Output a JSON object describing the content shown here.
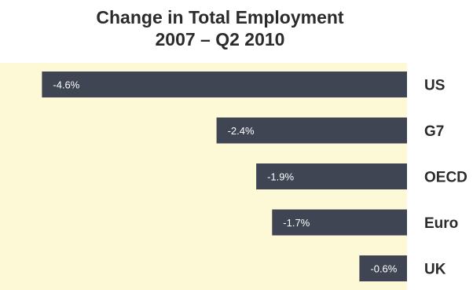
{
  "chart_data": {
    "type": "bar",
    "orientation": "horizontal",
    "title": [
      "Change in Total Employment",
      "2007 – Q2 2010"
    ],
    "categories": [
      "US",
      "G7",
      "OECD",
      "Euro",
      "UK"
    ],
    "values": [
      -4.6,
      -2.4,
      -1.9,
      -1.7,
      -0.6
    ],
    "value_labels": [
      "-4.6%",
      "-2.4%",
      "-1.9%",
      "-1.7%",
      "-0.6%"
    ],
    "xlim": [
      -5.0,
      0
    ],
    "grid": false,
    "legend": "none"
  },
  "colors": {
    "plot_background": "#fdf8d6",
    "bar": "#3f4552",
    "bar_label": "#ffffff",
    "category_label": "#2b2b2b",
    "title": "#2b2b2b"
  }
}
